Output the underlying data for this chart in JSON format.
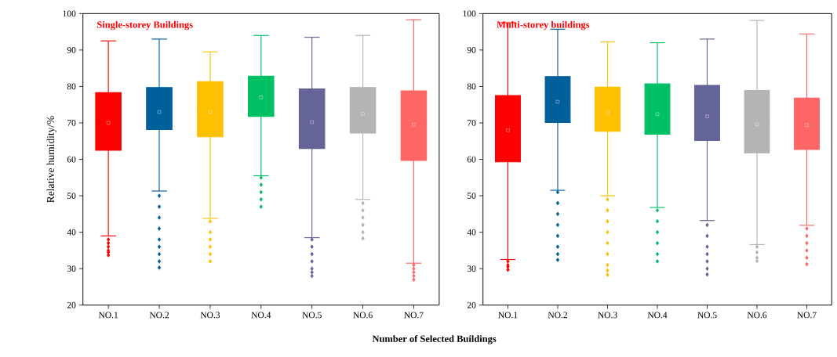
{
  "chart_data": [
    {
      "type": "box",
      "title": "Single-storey Buildings",
      "xlabel": "Number of Selected Buildings",
      "ylabel": "Relative humidity/%",
      "categories": [
        "NO.1",
        "NO.2",
        "NO.3",
        "NO.4",
        "NO.5",
        "NO.6",
        "NO.7"
      ],
      "colors": [
        "#ff0000",
        "#00609c",
        "#ffc000",
        "#00c066",
        "#646499",
        "#b4b4b4",
        "#ff6666"
      ],
      "ylim": [
        20,
        100
      ],
      "yticks": [
        20,
        30,
        40,
        50,
        60,
        70,
        80,
        90,
        100
      ],
      "boxes": [
        {
          "low": 39,
          "q1": 62.5,
          "median": 70,
          "q3": 78.3,
          "high": 92.5,
          "mean": 70,
          "outliers": [
            38,
            37,
            36,
            35,
            34.5,
            33.7
          ]
        },
        {
          "low": 51.3,
          "q1": 68.2,
          "median": 73,
          "q3": 79.7,
          "high": 93,
          "mean": 73,
          "outliers": [
            50,
            47,
            44,
            41,
            38,
            36,
            34,
            32,
            30.3
          ]
        },
        {
          "low": 43.8,
          "q1": 66.2,
          "median": 73,
          "q3": 81.3,
          "high": 89.5,
          "mean": 73,
          "outliers": [
            43,
            40,
            38,
            36,
            34,
            32
          ]
        },
        {
          "low": 55.5,
          "q1": 71.8,
          "median": 77,
          "q3": 82.8,
          "high": 94,
          "mean": 77,
          "outliers": [
            55,
            53,
            51,
            49,
            47
          ]
        },
        {
          "low": 38.5,
          "q1": 63,
          "median": 70.2,
          "q3": 79.3,
          "high": 93.5,
          "mean": 70.2,
          "outliers": [
            38,
            36,
            34,
            32,
            30,
            29,
            28
          ]
        },
        {
          "low": 49,
          "q1": 67.2,
          "median": 72.5,
          "q3": 79.7,
          "high": 94,
          "mean": 72.5,
          "outliers": [
            48,
            46,
            44,
            42,
            40,
            38.3
          ]
        },
        {
          "low": 31.5,
          "q1": 59.7,
          "median": 69.5,
          "q3": 78.8,
          "high": 98.3,
          "mean": 69.5,
          "outliers": [
            31,
            30,
            29,
            28,
            27
          ]
        }
      ]
    },
    {
      "type": "box",
      "title": "Multi-storey buildings",
      "categories": [
        "NO.1",
        "NO.2",
        "NO.3",
        "NO.4",
        "NO.5",
        "NO.6",
        "NO.7"
      ],
      "colors": [
        "#ff0000",
        "#00609c",
        "#ffc000",
        "#00c066",
        "#646499",
        "#b4b4b4",
        "#ff6666"
      ],
      "ylim": [
        20,
        100
      ],
      "yticks": [
        20,
        30,
        40,
        50,
        60,
        70,
        80,
        90,
        100
      ],
      "boxes": [
        {
          "low": 32.5,
          "q1": 59.3,
          "median": 68,
          "q3": 77.5,
          "high": 97.5,
          "mean": 68,
          "outliers": [
            32,
            31,
            30.5,
            29.7
          ]
        },
        {
          "low": 51.5,
          "q1": 70.1,
          "median": 75.8,
          "q3": 82.7,
          "high": 95.7,
          "mean": 75.8,
          "outliers": [
            51,
            48,
            45,
            42,
            39,
            36,
            34,
            32.4
          ]
        },
        {
          "low": 50,
          "q1": 67.7,
          "median": 72.8,
          "q3": 79.8,
          "high": 92.2,
          "mean": 72.8,
          "outliers": [
            49,
            46,
            43,
            40,
            37,
            34,
            31,
            29.5,
            28.3
          ]
        },
        {
          "low": 46.8,
          "q1": 66.9,
          "median": 72.4,
          "q3": 80.7,
          "high": 92,
          "mean": 72.4,
          "outliers": [
            46,
            43,
            40,
            37,
            34,
            32
          ]
        },
        {
          "low": 43.2,
          "q1": 65.2,
          "median": 71.8,
          "q3": 80.3,
          "high": 93,
          "mean": 71.8,
          "outliers": [
            42,
            39,
            36,
            34,
            32,
            30,
            28.4
          ]
        },
        {
          "low": 36.6,
          "q1": 61.8,
          "median": 69.6,
          "q3": 78.9,
          "high": 98.1,
          "mean": 69.6,
          "outliers": [
            36,
            34.5,
            33,
            32.1
          ]
        },
        {
          "low": 41.9,
          "q1": 62.7,
          "median": 69.4,
          "q3": 76.8,
          "high": 94.4,
          "mean": 69.4,
          "outliers": [
            41,
            39,
            37,
            35,
            33,
            31.2
          ]
        }
      ]
    }
  ]
}
